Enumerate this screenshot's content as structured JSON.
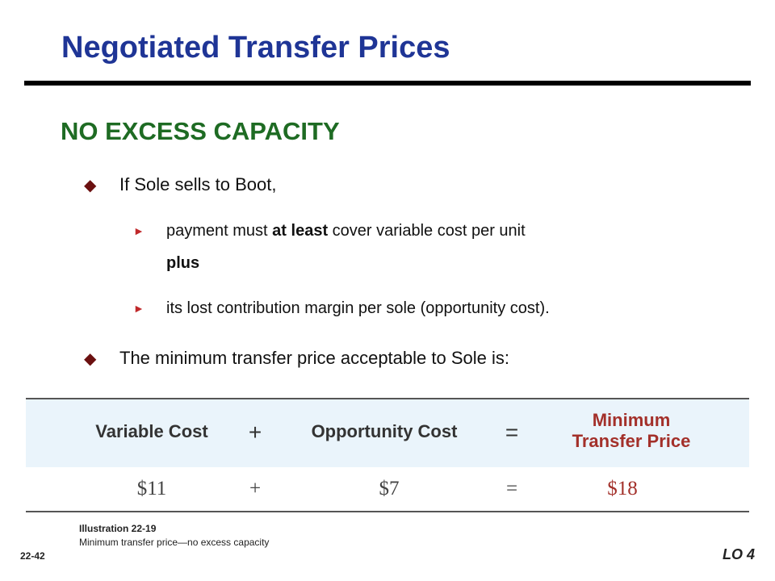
{
  "header": {
    "title": "Negotiated Transfer Prices"
  },
  "heading": "NO EXCESS CAPACITY",
  "bullets": [
    {
      "text": "If Sole sells to Boot,",
      "subs": [
        {
          "parts": [
            "payment must ",
            "at least",
            " cover variable cost per unit",
            "plus"
          ]
        },
        {
          "parts": [
            "its lost contribution margin per sole (opportunity cost)."
          ]
        }
      ]
    },
    {
      "text": "The minimum transfer price acceptable to Sole is:"
    }
  ],
  "table": {
    "header": [
      "Variable Cost",
      "+",
      "Opportunity Cost",
      "=",
      "Minimum Transfer Price"
    ],
    "rows": [
      [
        "$11",
        "+",
        "$7",
        "=",
        "$18"
      ]
    ]
  },
  "caption": {
    "label": "Illustration 22-19",
    "text": "Minimum transfer price—no excess capacity"
  },
  "footer": {
    "page": "22-42",
    "objective": "LO 4"
  }
}
